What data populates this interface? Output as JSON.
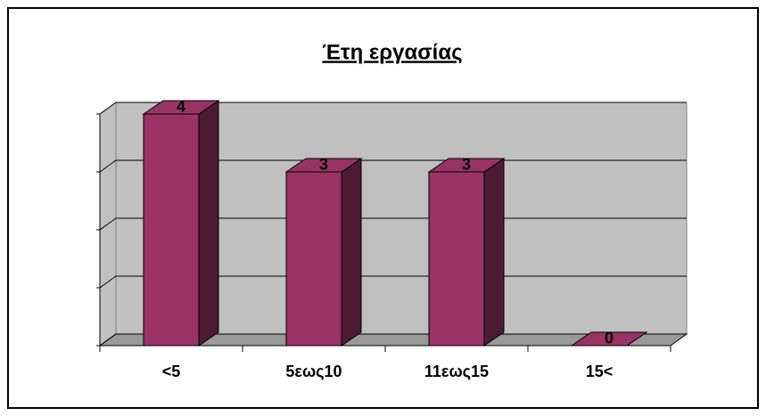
{
  "chart_data": {
    "type": "bar3d",
    "title": "Έτη εργασίας",
    "categories": [
      "<5",
      "5εως10",
      "11εως15",
      "15<"
    ],
    "values": [
      4,
      3,
      3,
      0
    ],
    "color": "#993366",
    "side_color": "#4d1a33",
    "ylim": [
      0,
      4
    ],
    "yticks": [
      0,
      1,
      2,
      3,
      4
    ],
    "grid": true
  }
}
